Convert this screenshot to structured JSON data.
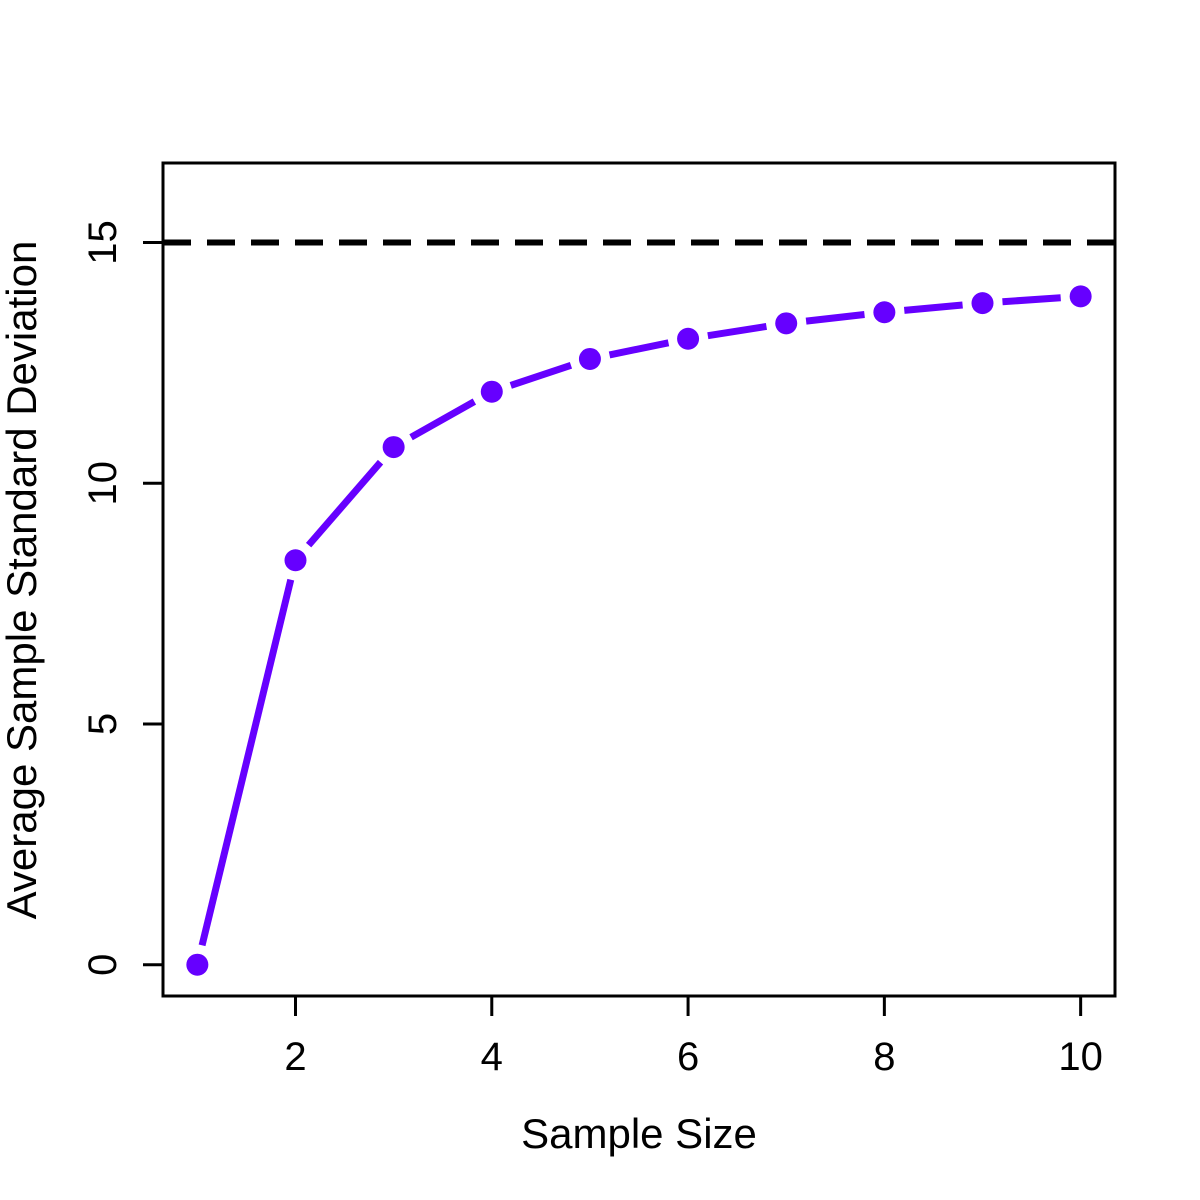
{
  "chart_data": {
    "type": "line",
    "title": "",
    "xlabel": "Sample Size",
    "ylabel": "Average Sample Standard Deviation",
    "xlim": [
      0.65,
      10.35
    ],
    "ylim": [
      -0.65,
      16.65
    ],
    "x_ticks": [
      2,
      4,
      6,
      8,
      10
    ],
    "y_ticks": [
      0,
      5,
      10,
      15
    ],
    "grid": false,
    "legend": "none",
    "series": [
      {
        "x": [
          1,
          2,
          3,
          4,
          5,
          6,
          7,
          8,
          9,
          10
        ],
        "values": [
          0,
          8.4,
          10.75,
          11.9,
          12.58,
          13.0,
          13.32,
          13.55,
          13.74,
          13.88
        ],
        "color": "#6600FF",
        "style": "line-with-points"
      }
    ],
    "reference_lines": [
      {
        "y": 15,
        "style": "dashed",
        "color": "#000000"
      }
    ]
  }
}
